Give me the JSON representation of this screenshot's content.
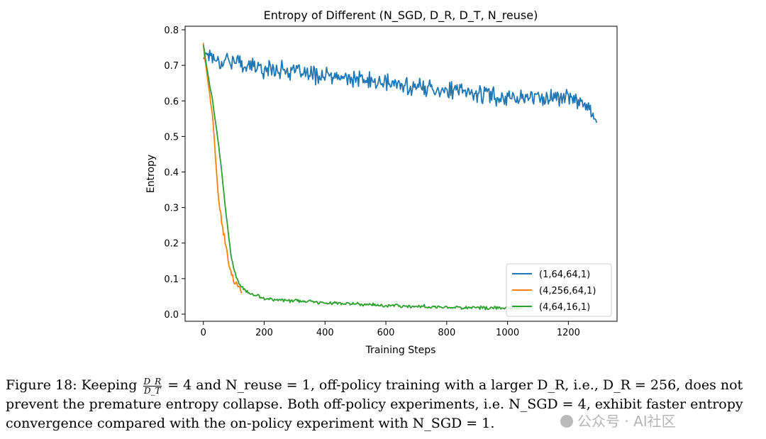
{
  "chart_data": {
    "type": "line",
    "title": "Entropy of  Different (N_SGD, D_R, D_T, N_reuse)",
    "xlabel": "Training Steps",
    "ylabel": "Entropy",
    "xlim": [
      -60,
      1360
    ],
    "ylim": [
      -0.02,
      0.81
    ],
    "x_ticks": [
      0,
      200,
      400,
      600,
      800,
      1000,
      1200
    ],
    "y_ticks": [
      0.0,
      0.1,
      0.2,
      0.3,
      0.4,
      0.5,
      0.6,
      0.7,
      0.8
    ],
    "x_tick_labels": [
      "0",
      "200",
      "400",
      "600",
      "800",
      "1000",
      "1200"
    ],
    "y_tick_labels": [
      "0.0",
      "0.1",
      "0.2",
      "0.3",
      "0.4",
      "0.5",
      "0.6",
      "0.7",
      "0.8"
    ],
    "grid": false,
    "legend_position": "lower-right",
    "series": [
      {
        "name": "(1,64,64,1)",
        "color": "#1f77b4",
        "x": [
          0,
          10,
          25,
          50,
          75,
          100,
          150,
          200,
          250,
          300,
          400,
          500,
          600,
          700,
          800,
          900,
          1000,
          1100,
          1200,
          1240,
          1260,
          1280,
          1290,
          1295
        ],
        "y": [
          0.72,
          0.74,
          0.73,
          0.71,
          0.72,
          0.71,
          0.7,
          0.69,
          0.69,
          0.68,
          0.67,
          0.66,
          0.65,
          0.64,
          0.63,
          0.62,
          0.61,
          0.61,
          0.61,
          0.6,
          0.59,
          0.57,
          0.55,
          0.54
        ],
        "noise": 0.03
      },
      {
        "name": "(4,256,64,1)",
        "color": "#ff7f0e",
        "x": [
          0,
          5,
          10,
          20,
          30,
          40,
          50,
          60,
          70,
          80,
          90,
          100,
          110,
          120,
          128
        ],
        "y": [
          0.76,
          0.72,
          0.69,
          0.62,
          0.56,
          0.44,
          0.32,
          0.26,
          0.21,
          0.16,
          0.12,
          0.09,
          0.08,
          0.07,
          0.06
        ],
        "noise": 0.012
      },
      {
        "name": "(4,64,16,1)",
        "color": "#2ca02c",
        "x": [
          0,
          5,
          10,
          20,
          30,
          40,
          50,
          60,
          70,
          80,
          90,
          100,
          110,
          120,
          140,
          160,
          180,
          200,
          250,
          300,
          400,
          500,
          600,
          700,
          800,
          900,
          1000,
          1050
        ],
        "y": [
          0.76,
          0.73,
          0.7,
          0.65,
          0.6,
          0.54,
          0.48,
          0.4,
          0.32,
          0.24,
          0.17,
          0.13,
          0.1,
          0.08,
          0.065,
          0.055,
          0.05,
          0.045,
          0.04,
          0.037,
          0.033,
          0.028,
          0.025,
          0.022,
          0.02,
          0.018,
          0.017,
          0.016
        ],
        "noise": 0.006
      }
    ]
  },
  "caption": {
    "l1_a": "Figure 18: Keeping ",
    "frac_num": "D_R",
    "frac_den": "D_T",
    "l1_b": " = 4 and N_reuse = 1, off-policy training with a larger D_R, i.e., D_R = 256, does not",
    "l2": "prevent the premature entropy collapse. Both off-policy experiments, i.e. N_SGD = 4, exhibit faster entropy",
    "l3": "convergence compared with the on-policy experiment with N_SGD = 1."
  },
  "watermark": "公众号 · AI社区"
}
